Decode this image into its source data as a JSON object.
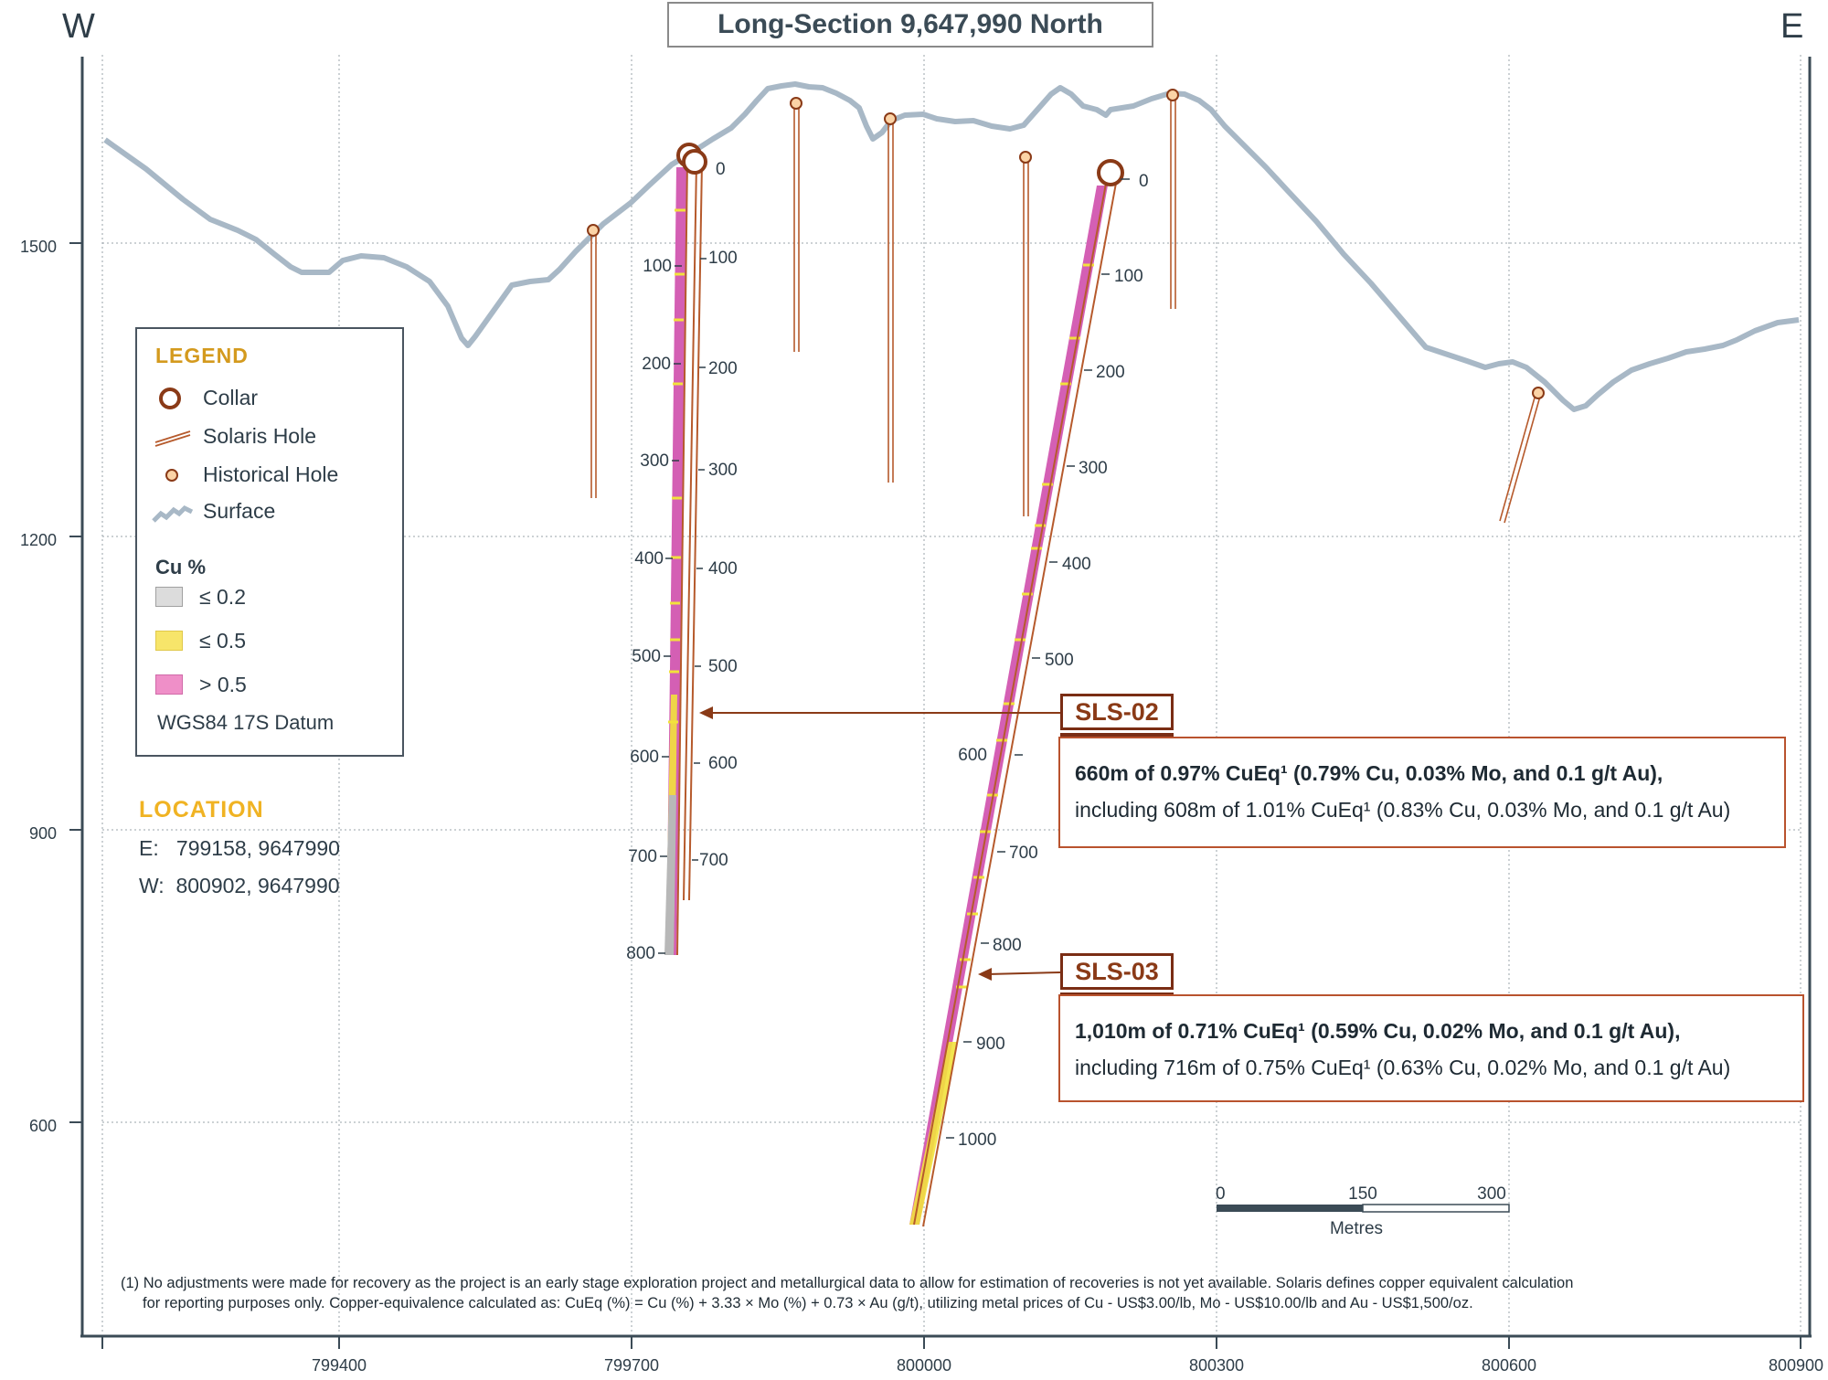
{
  "title": "Long-Section 9,647,990 North",
  "compass": {
    "west": "W",
    "east": "E"
  },
  "axes": {
    "x_ticks": [
      "799400",
      "799700",
      "800000",
      "800300",
      "800600",
      "800900"
    ],
    "y_ticks": [
      "1500",
      "1200",
      "900",
      "600"
    ]
  },
  "legend": {
    "title": "LEGEND",
    "items": [
      {
        "label": "Collar",
        "icon": "collar-icon"
      },
      {
        "label": "Solaris Hole",
        "icon": "solaris-hole-icon"
      },
      {
        "label": "Historical Hole",
        "icon": "historical-hole-icon"
      },
      {
        "label": "Surface",
        "icon": "surface-icon"
      }
    ],
    "cu_title": "Cu %",
    "cu_classes": [
      {
        "label": "≤ 0.2",
        "color": "#dcdcdc"
      },
      {
        "label": "≤ 0.5",
        "color": "#f7e56a"
      },
      {
        "label": "> 0.5",
        "color": "#ef8fc8"
      }
    ],
    "datum": "WGS84 17S Datum"
  },
  "location": {
    "title": "LOCATION",
    "e_label": "E:",
    "e_value": "799158, 9647990",
    "w_label": "W:",
    "w_value": "800902, 9647990"
  },
  "holes": {
    "sls02": {
      "name": "SLS-02",
      "depth_labels_left": [
        "100",
        "200",
        "300",
        "400",
        "500",
        "600",
        "700",
        "800"
      ],
      "depth_labels_right": [
        "0",
        "100",
        "200",
        "300",
        "400",
        "500",
        "600",
        "700"
      ],
      "summary_bold": "660m of 0.97% CuEq¹ (0.79% Cu, 0.03% Mo, and 0.1 g/t Au),",
      "summary_sub": "including 608m of 1.01% CuEq¹ (0.83% Cu, 0.03% Mo, and 0.1 g/t Au)"
    },
    "sls03": {
      "name": "SLS-03",
      "depth_labels_right": [
        "0",
        "100",
        "200",
        "300",
        "400",
        "500"
      ],
      "depth_labels_left": [
        "600",
        "700",
        "800",
        "900",
        "1000"
      ],
      "summary_bold": "1,010m of 0.71% CuEq¹ (0.59% Cu, 0.02% Mo, and 0.1 g/t Au),",
      "summary_sub": "including 716m of 0.75% CuEq¹ (0.63% Cu, 0.02% Mo, and 0.1 g/t Au)"
    }
  },
  "scale_bar": {
    "labels": [
      "0",
      "150",
      "300"
    ],
    "unit": "Metres"
  },
  "footnote": {
    "line1": "(1) No adjustments were made for recovery as the project is an early stage exploration project and metallurgical data to allow for estimation of recoveries is not yet available. Solaris defines copper equivalent calculation",
    "line2": "for reporting purposes only. Copper-equivalence calculated as:  CuEq (%) = Cu (%) + 3.33 × Mo (%) + 0.73 × Au (g/t), utilizing metal prices of Cu - US$3.00/lb, Mo - US$10.00/lb and Au - US$1,500/oz."
  },
  "colors": {
    "surface": "#a8b8c6",
    "hole": "#b65a2c",
    "collar": "#8a3a17",
    "grid": "#9aa3aa",
    "axis": "#3b4b56",
    "high_grade": "#d45fb4",
    "mid_grade": "#f2e23c",
    "low_grade": "#b8b8b8"
  }
}
